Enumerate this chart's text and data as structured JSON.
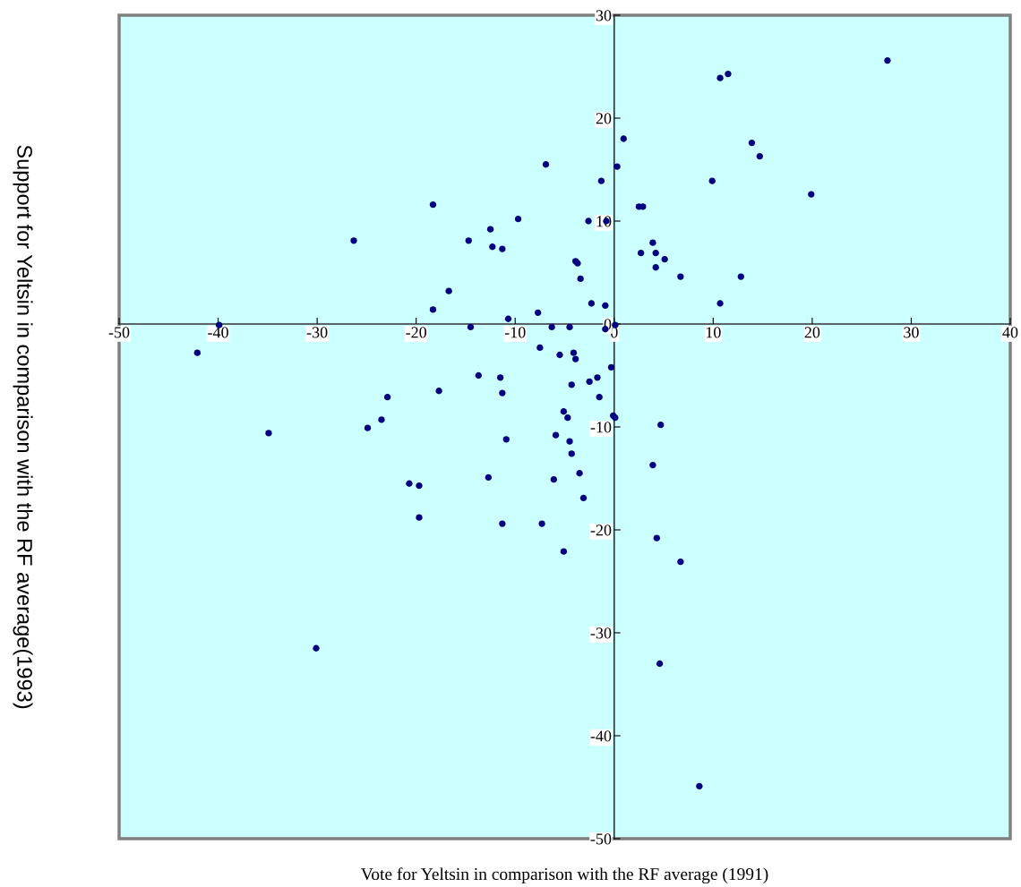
{
  "chart_data": {
    "type": "scatter",
    "xlabel": "Vote for Yeltsin in comparison with the RF average (1991)",
    "ylabel": "Support for Yeltsin in comparison with the RF average(1993)",
    "xlim": [
      -50,
      40
    ],
    "xticks": [
      -50,
      -40,
      -30,
      -20,
      -10,
      0,
      10,
      20,
      30,
      40
    ],
    "ylim": [
      -50,
      30
    ],
    "yticks": [
      -50,
      -40,
      -30,
      -20,
      -10,
      0,
      10,
      20,
      30
    ],
    "grid": false,
    "marker": "circle",
    "series": [
      {
        "color": "#000080",
        "x": [
          27.6,
          10.7,
          11.5,
          0.95,
          13.9,
          14.7,
          -6.9,
          0.3,
          -1.3,
          9.9,
          19.9,
          2.5,
          2.9,
          -2.6,
          -0.8,
          3.9,
          2.7,
          4.2,
          5.1,
          -3.9,
          -3.7,
          4.2,
          -3.4,
          6.7,
          12.8,
          -2.3,
          -0.9,
          10.7,
          -7.7,
          -6.3,
          -4.5,
          0.1,
          -0.9,
          -18.3,
          -26.3,
          -14.7,
          -9.7,
          -12.5,
          -12.3,
          -11.3,
          -16.7,
          -18.3,
          -10.7,
          -39.9,
          -14.5,
          -42.1,
          -7.5,
          -5.5,
          -13.7,
          -11.5,
          -17.7,
          -11.3,
          -22.9,
          -23.5,
          -24.9,
          -34.9,
          -10.9,
          -12.7,
          -20.7,
          -19.7,
          -19.7,
          -11.3,
          -7.3,
          -4.1,
          -3.9,
          -0.3,
          -1.7,
          -2.5,
          -4.3,
          -1.5,
          -5.1,
          -4.7,
          -0.1,
          0.1,
          4.7,
          -5.9,
          -4.5,
          -4.3,
          3.9,
          -3.5,
          -6.1,
          -3.1,
          4.3,
          -5.1,
          6.7,
          -30.1,
          4.6,
          8.6
        ],
        "values": [
          25.6,
          23.9,
          24.3,
          18.0,
          17.6,
          16.3,
          15.5,
          15.3,
          13.9,
          13.9,
          12.6,
          11.4,
          11.4,
          10.0,
          10.0,
          7.9,
          6.9,
          6.9,
          6.3,
          6.1,
          5.9,
          5.5,
          4.4,
          4.6,
          4.6,
          2.0,
          1.8,
          2.0,
          1.1,
          -0.3,
          -0.3,
          -0.1,
          -0.5,
          11.6,
          8.1,
          8.1,
          10.2,
          9.2,
          7.5,
          7.3,
          3.2,
          1.4,
          0.5,
          -0.1,
          -0.3,
          -2.8,
          -2.3,
          -3.0,
          -5.0,
          -5.2,
          -6.5,
          -6.7,
          -7.1,
          -9.3,
          -10.1,
          -10.6,
          -11.2,
          -14.9,
          -15.5,
          -15.7,
          -18.8,
          -19.4,
          -19.4,
          -2.8,
          -3.4,
          -4.2,
          -5.2,
          -5.6,
          -5.9,
          -7.1,
          -8.5,
          -9.1,
          -8.9,
          -9.1,
          -9.8,
          -10.8,
          -11.4,
          -12.6,
          -13.7,
          -14.5,
          -15.1,
          -16.9,
          -20.8,
          -22.1,
          -23.1,
          -31.5,
          -33.0,
          -44.9
        ]
      }
    ]
  }
}
